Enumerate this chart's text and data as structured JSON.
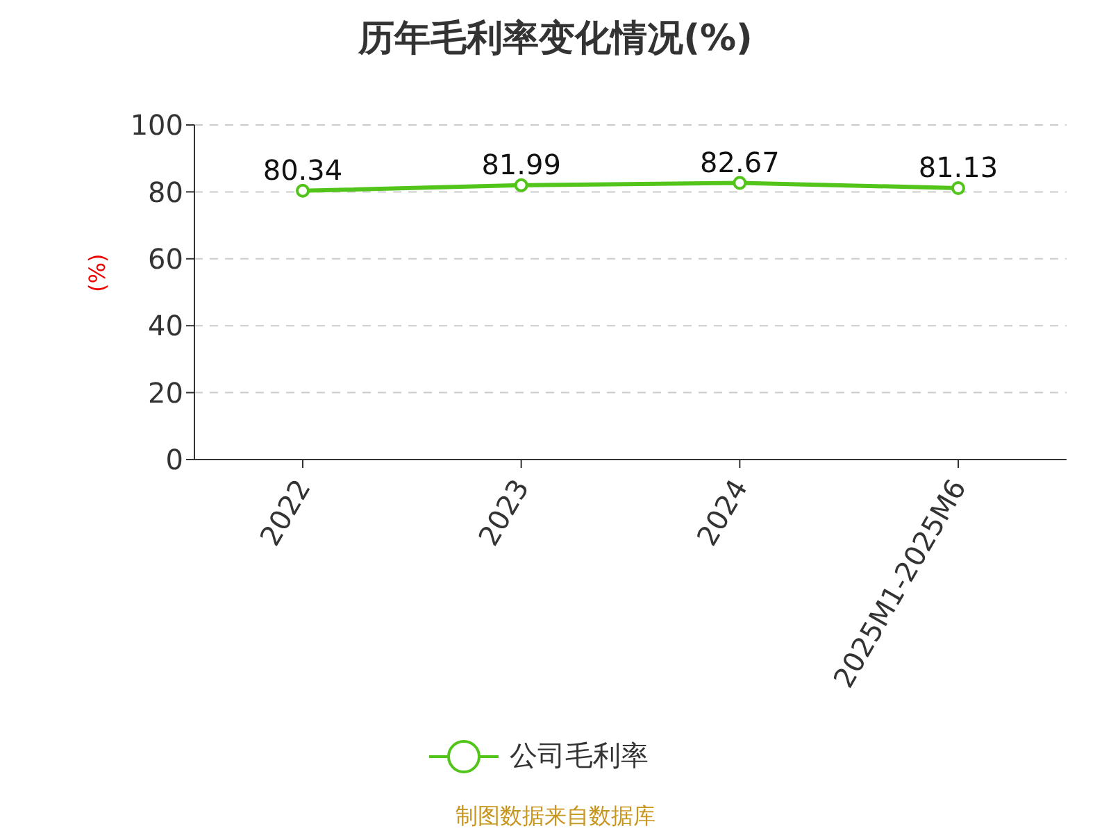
{
  "chart_data": {
    "type": "line",
    "title": "历年毛利率变化情况(%)",
    "ylabel": "(%)",
    "categories": [
      "2022",
      "2023",
      "2024",
      "2025M1-2025M6"
    ],
    "series": [
      {
        "name": "公司毛利率",
        "color": "#52c41a",
        "values": [
          80.34,
          81.99,
          82.67,
          81.13
        ]
      }
    ],
    "ylim": [
      0,
      100
    ],
    "yticks": [
      0,
      20,
      40,
      60,
      80,
      100
    ],
    "grid": "y",
    "legend": "bottom",
    "marker": "circle",
    "line_style": "solid",
    "data_labels": true,
    "annotations": [
      "制图数据来自数据库"
    ]
  }
}
